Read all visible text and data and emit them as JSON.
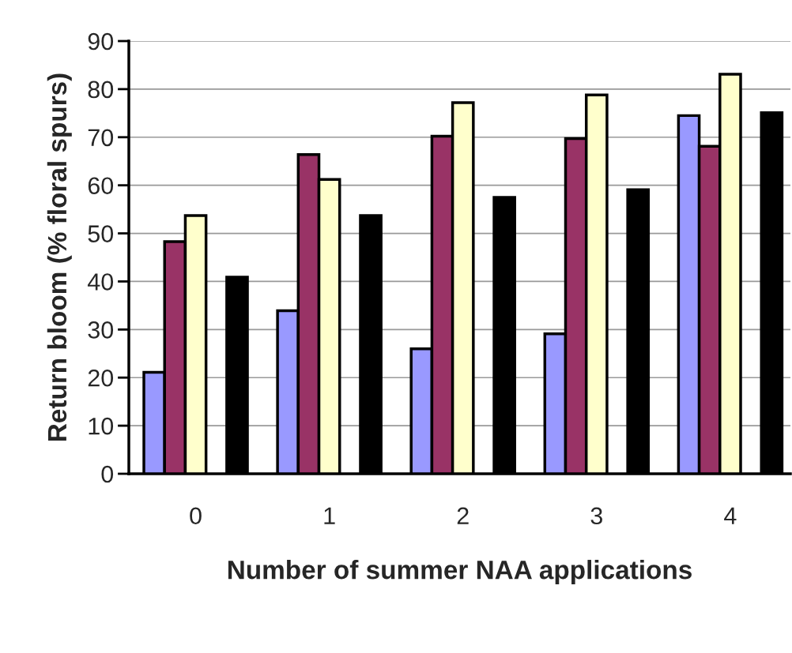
{
  "chart_data": {
    "type": "bar",
    "xlabel": "Number of summer NAA applications",
    "ylabel": "Return bloom (% floral spurs)",
    "categories": [
      "0",
      "1",
      "2",
      "3",
      "4"
    ],
    "series": [
      {
        "color": "#9999ff",
        "values": [
          21.1,
          33.9,
          26.0,
          29.1,
          74.5
        ]
      },
      {
        "color": "#993366",
        "values": [
          48.3,
          66.4,
          70.2,
          69.7,
          68.1
        ]
      },
      {
        "color": "#ffffcc",
        "values": [
          53.7,
          61.2,
          77.2,
          78.8,
          83.1
        ]
      },
      {
        "values": [
          null,
          null,
          null,
          null,
          null
        ]
      },
      {
        "color": "#000000",
        "values": [
          40.9,
          53.7,
          57.5,
          59.1,
          75.1
        ]
      }
    ],
    "ylim": [
      0,
      90
    ],
    "yticks": [
      0,
      10,
      20,
      30,
      40,
      50,
      60,
      70,
      80,
      90
    ],
    "grid": "y"
  }
}
